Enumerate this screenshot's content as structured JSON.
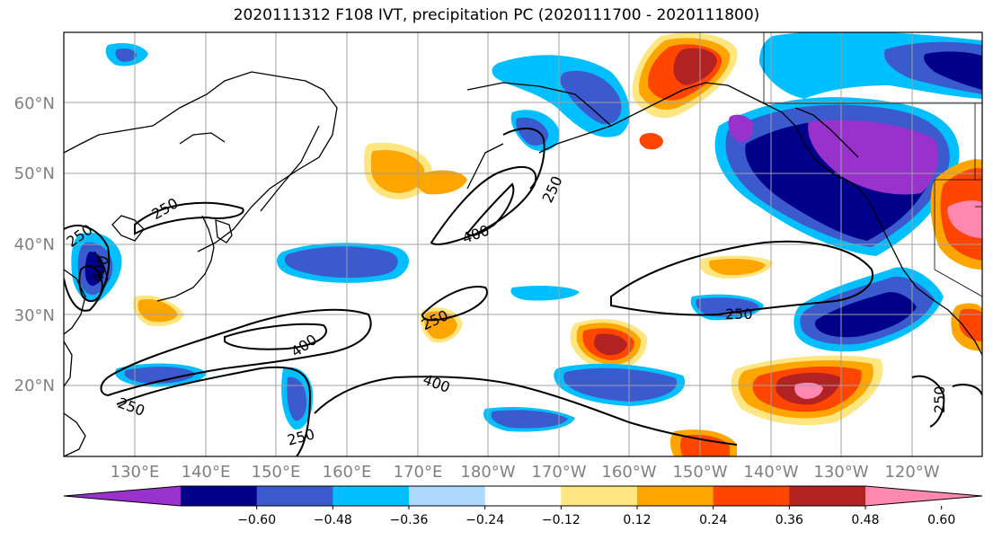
{
  "title": "2020111312 F108 IVT, precipitation PC (2020111700 - 2020111800)",
  "map": {
    "lat_labels": [
      "60°N",
      "50°N",
      "40°N",
      "30°N",
      "20°N"
    ],
    "lon_labels": [
      "130°E",
      "140°E",
      "150°E",
      "160°E",
      "170°E",
      "180°W",
      "170°W",
      "160°W",
      "150°W",
      "140°W",
      "130°W",
      "120°W"
    ],
    "contour_labels": [
      {
        "id": "c250-a",
        "text": "250"
      },
      {
        "id": "c250-b",
        "text": "250"
      },
      {
        "id": "c250-c",
        "text": "250"
      },
      {
        "id": "c250-d",
        "text": "250"
      },
      {
        "id": "c250-e",
        "text": "250"
      },
      {
        "id": "c250-f",
        "text": "250"
      },
      {
        "id": "c250-g",
        "text": "250"
      },
      {
        "id": "c400-a",
        "text": "400"
      },
      {
        "id": "c400-b",
        "text": "400"
      },
      {
        "id": "c400-c",
        "text": "400"
      },
      {
        "id": "c400-d",
        "text": "400"
      }
    ]
  },
  "colorbar": {
    "levels": [
      "−0.60",
      "−0.48",
      "−0.36",
      "−0.24",
      "−0.12",
      "0.12",
      "0.24",
      "0.36",
      "0.48",
      "0.60"
    ],
    "colors": [
      "#9932cc",
      "#00008b",
      "#3a5acd",
      "#00bfff",
      "#add8ff",
      "#ffffff",
      "#ffe680",
      "#ffa500",
      "#ff4500",
      "#b22222",
      "#ff88b0"
    ]
  },
  "chart_data": {
    "type": "heatmap",
    "title": "2020111312 F108 IVT, precipitation PC (2020111700 - 2020111800)",
    "latitude_ticks": [
      60,
      50,
      40,
      30,
      20
    ],
    "longitude_ticks": [
      "130°E",
      "140°E",
      "150°E",
      "160°E",
      "170°E",
      "180°W",
      "170°W",
      "160°W",
      "150°W",
      "140°W",
      "130°W",
      "120°W"
    ],
    "ivt_contour_levels": [
      250,
      400
    ],
    "precipitation_pc_levels": [
      -0.6,
      -0.48,
      -0.36,
      -0.24,
      -0.12,
      0.12,
      0.24,
      0.36,
      0.48,
      0.6
    ],
    "grid": true
  }
}
